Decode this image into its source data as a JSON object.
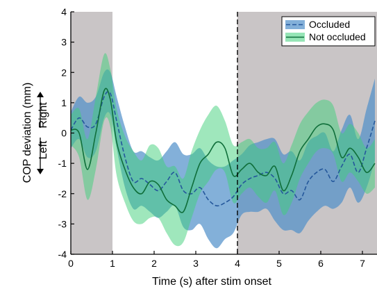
{
  "chart_data": {
    "type": "line",
    "xlabel": "Time (s) after stim onset",
    "ylabel": "COP deviation (mm)",
    "y_direction_labels": {
      "right": "Right",
      "left": "Left"
    },
    "xlim": [
      0,
      7.35
    ],
    "ylim": [
      -4,
      4
    ],
    "x_ticks": [
      0,
      1,
      2,
      3,
      4,
      5,
      6,
      7
    ],
    "y_ticks": [
      -4,
      -3,
      -2,
      -1,
      0,
      1,
      2,
      3,
      4
    ],
    "shaded_intervals": [
      [
        0,
        1
      ],
      [
        4,
        7.35
      ]
    ],
    "vertical_line_x": 4,
    "legend_position": "top-right",
    "colors": {
      "shade": "#c9c5c6",
      "occluded_band": "#4f8fc9",
      "occluded_line": "#24579b",
      "not_occluded_band": "#3fd07a",
      "not_occluded_line": "#0f6e3a"
    },
    "series": [
      {
        "name": "Occluded",
        "style": "dashed",
        "x": [
          0,
          0.2,
          0.4,
          0.6,
          0.8,
          0.95,
          1.1,
          1.3,
          1.5,
          1.7,
          1.9,
          2.1,
          2.3,
          2.5,
          2.7,
          2.9,
          3.1,
          3.3,
          3.5,
          3.7,
          3.9,
          4.1,
          4.3,
          4.5,
          4.7,
          4.9,
          5.1,
          5.3,
          5.5,
          5.7,
          5.9,
          6.1,
          6.3,
          6.5,
          6.7,
          6.9,
          7.1,
          7.3
        ],
        "values": [
          0.1,
          0.5,
          0.2,
          0.3,
          1.2,
          1.3,
          0.4,
          -0.8,
          -1.6,
          -1.5,
          -1.7,
          -1.9,
          -1.6,
          -1.3,
          -1.9,
          -2.0,
          -1.8,
          -2.2,
          -2.4,
          -2.3,
          -2.1,
          -1.7,
          -1.5,
          -1.4,
          -1.3,
          -1.5,
          -2.0,
          -1.9,
          -2.2,
          -1.6,
          -1.3,
          -1.2,
          -1.6,
          -1.1,
          -0.7,
          -1.3,
          -0.5,
          0.4
        ],
        "lower": [
          -0.5,
          -0.2,
          -0.8,
          -0.6,
          0.5,
          0.6,
          -0.5,
          -1.8,
          -2.5,
          -2.4,
          -2.6,
          -2.8,
          -2.6,
          -2.4,
          -3.1,
          -3.2,
          -3.0,
          -3.5,
          -3.8,
          -3.5,
          -3.3,
          -2.7,
          -2.6,
          -2.6,
          -2.5,
          -2.9,
          -3.2,
          -3.2,
          -3.3,
          -2.9,
          -2.6,
          -2.4,
          -2.5,
          -2.3,
          -1.8,
          -2.3,
          -1.8,
          -0.9
        ],
        "upper": [
          0.7,
          1.2,
          1.0,
          1.2,
          2.0,
          2.0,
          1.2,
          0.2,
          -0.6,
          -0.6,
          -0.8,
          -0.9,
          -0.6,
          -0.3,
          -0.7,
          -0.7,
          -0.5,
          -0.9,
          -1.1,
          -1.1,
          -0.9,
          -0.7,
          -0.4,
          -0.3,
          -0.2,
          -0.2,
          -0.7,
          -0.6,
          -0.9,
          -0.3,
          -0.1,
          0.0,
          -0.6,
          0.1,
          0.6,
          -0.2,
          0.8,
          1.8
        ]
      },
      {
        "name": "Not occluded",
        "style": "solid",
        "x": [
          0,
          0.2,
          0.4,
          0.6,
          0.8,
          0.95,
          1.1,
          1.3,
          1.5,
          1.7,
          1.9,
          2.1,
          2.3,
          2.5,
          2.7,
          2.9,
          3.1,
          3.3,
          3.5,
          3.7,
          3.9,
          4.1,
          4.3,
          4.5,
          4.7,
          4.9,
          5.1,
          5.3,
          5.5,
          5.7,
          5.9,
          6.1,
          6.3,
          6.5,
          6.7,
          6.9,
          7.1,
          7.3
        ],
        "values": [
          0.1,
          0.0,
          -1.2,
          0.0,
          1.4,
          1.1,
          -0.3,
          -1.2,
          -1.8,
          -2.0,
          -1.6,
          -1.7,
          -2.2,
          -2.4,
          -2.6,
          -1.8,
          -1.0,
          -0.7,
          -0.3,
          -0.5,
          -1.4,
          -1.2,
          -1.0,
          -1.3,
          -1.4,
          -1.1,
          -1.9,
          -1.4,
          -0.6,
          -0.2,
          0.2,
          0.3,
          0.1,
          -0.8,
          -0.5,
          -0.8,
          -1.3,
          -1.0
        ],
        "lower": [
          -0.4,
          -0.8,
          -2.2,
          -1.2,
          0.4,
          0.2,
          -1.4,
          -2.3,
          -2.9,
          -3.0,
          -2.8,
          -2.8,
          -3.3,
          -3.7,
          -3.6,
          -2.8,
          -2.0,
          -1.6,
          -1.2,
          -1.3,
          -2.3,
          -2.0,
          -1.8,
          -2.1,
          -2.3,
          -1.9,
          -2.7,
          -2.3,
          -1.5,
          -1.0,
          -0.6,
          -0.5,
          -0.7,
          -1.6,
          -1.3,
          -1.6,
          -2.0,
          -1.8
        ],
        "upper": [
          0.6,
          0.8,
          -0.2,
          1.2,
          2.6,
          2.1,
          0.8,
          -0.1,
          -0.6,
          -0.9,
          -0.4,
          -0.5,
          -1.1,
          -1.1,
          -1.5,
          -0.6,
          0.1,
          0.6,
          0.9,
          0.4,
          -0.4,
          -0.3,
          -0.2,
          -0.5,
          -0.5,
          -0.3,
          -1.0,
          -0.4,
          0.3,
          0.7,
          1.0,
          1.1,
          0.9,
          0.0,
          0.3,
          0.0,
          -0.5,
          -0.2
        ]
      }
    ]
  }
}
